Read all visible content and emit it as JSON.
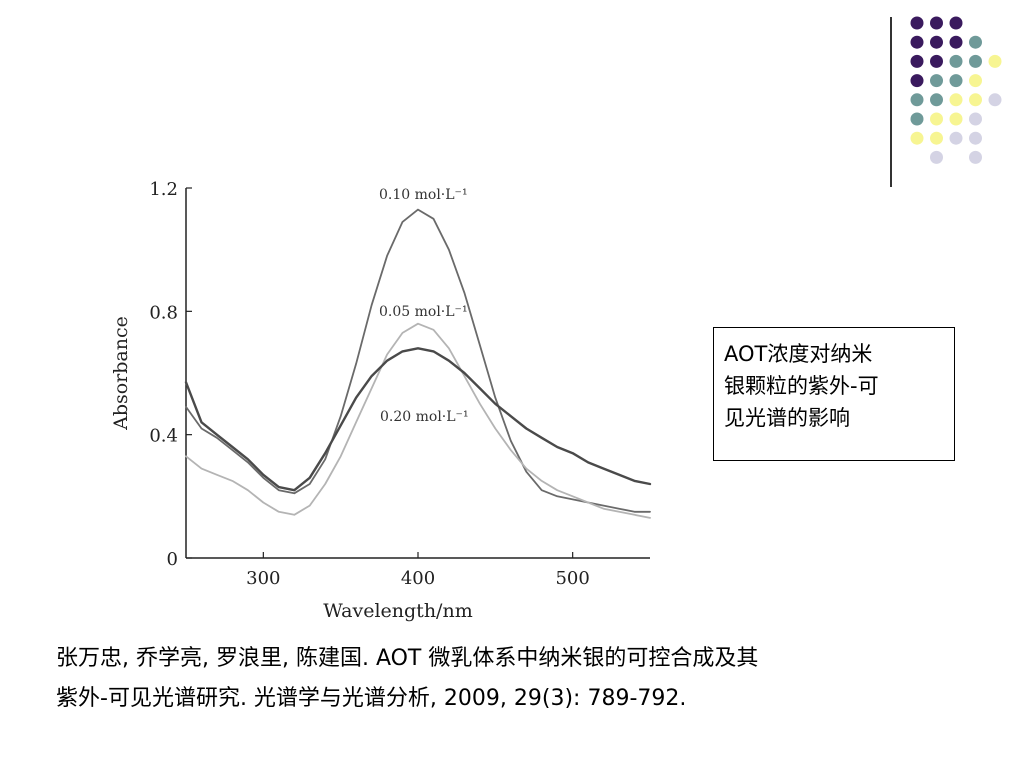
{
  "caption": {
    "lines": [
      "AOT浓度对纳米",
      "银颗粒的紫外-可",
      "见光谱的影响"
    ]
  },
  "citation": {
    "lines": [
      "张万忠,  乔学亮, 罗浪里, 陈建国. AOT 微乳体系中纳米银的可控合成及其",
      "紫外-可见光谱研究. 光谱学与光谱分析, 2009, 29(3): 789-792."
    ]
  },
  "decor": {
    "dot_colors": {
      "purple": "#3a1a5e",
      "teal": "#6f9a99",
      "yellow": "#f7f592",
      "lavender": "#d4d3e4"
    }
  },
  "chart_data": {
    "type": "line",
    "xlabel": "Wavelength/nm",
    "ylabel": "Absorbance",
    "xlim": [
      250,
      550
    ],
    "ylim": [
      0,
      1.2
    ],
    "xticks": [
      300,
      400,
      500
    ],
    "yticks": [
      0,
      0.4,
      0.8,
      1.2
    ],
    "ytick_labels": [
      "0",
      "0.4",
      "0.8",
      "1.2"
    ],
    "grid": false,
    "series": [
      {
        "name": "0.10 mol·L⁻¹",
        "color": "#6a6a6a",
        "x": [
          250,
          260,
          270,
          280,
          290,
          300,
          310,
          320,
          330,
          340,
          350,
          360,
          370,
          380,
          390,
          400,
          410,
          420,
          430,
          440,
          450,
          460,
          470,
          480,
          490,
          500,
          510,
          520,
          530,
          540,
          550
        ],
        "y": [
          0.49,
          0.42,
          0.39,
          0.35,
          0.31,
          0.26,
          0.22,
          0.21,
          0.24,
          0.32,
          0.46,
          0.63,
          0.82,
          0.98,
          1.09,
          1.13,
          1.1,
          1.0,
          0.86,
          0.69,
          0.52,
          0.38,
          0.28,
          0.22,
          0.2,
          0.19,
          0.18,
          0.17,
          0.16,
          0.15,
          0.15
        ]
      },
      {
        "name": "0.05 mol·L⁻¹",
        "color": "#b4b4b4",
        "x": [
          250,
          260,
          270,
          280,
          290,
          300,
          310,
          320,
          330,
          340,
          350,
          360,
          370,
          380,
          390,
          400,
          410,
          420,
          430,
          440,
          450,
          460,
          470,
          480,
          490,
          500,
          510,
          520,
          530,
          540,
          550
        ],
        "y": [
          0.33,
          0.29,
          0.27,
          0.25,
          0.22,
          0.18,
          0.15,
          0.14,
          0.17,
          0.24,
          0.33,
          0.44,
          0.55,
          0.66,
          0.73,
          0.76,
          0.74,
          0.68,
          0.59,
          0.5,
          0.42,
          0.35,
          0.29,
          0.25,
          0.22,
          0.2,
          0.18,
          0.16,
          0.15,
          0.14,
          0.13
        ]
      },
      {
        "name": "0.20 mol·L⁻¹",
        "color": "#4a4a4a",
        "x": [
          250,
          260,
          270,
          280,
          290,
          300,
          310,
          320,
          330,
          340,
          350,
          360,
          370,
          380,
          390,
          400,
          410,
          420,
          430,
          440,
          450,
          460,
          470,
          480,
          490,
          500,
          510,
          520,
          530,
          540,
          550
        ],
        "y": [
          0.57,
          0.44,
          0.4,
          0.36,
          0.32,
          0.27,
          0.23,
          0.22,
          0.26,
          0.34,
          0.43,
          0.52,
          0.59,
          0.64,
          0.67,
          0.68,
          0.67,
          0.64,
          0.6,
          0.55,
          0.5,
          0.46,
          0.42,
          0.39,
          0.36,
          0.34,
          0.31,
          0.29,
          0.27,
          0.25,
          0.24
        ]
      }
    ],
    "annotations": [
      {
        "text": "0.10 mol·L⁻¹",
        "series": 0
      },
      {
        "text": "0.05 mol·L⁻¹",
        "series": 1
      },
      {
        "text": "0.20 mol·L⁻¹",
        "series": 2
      }
    ]
  }
}
